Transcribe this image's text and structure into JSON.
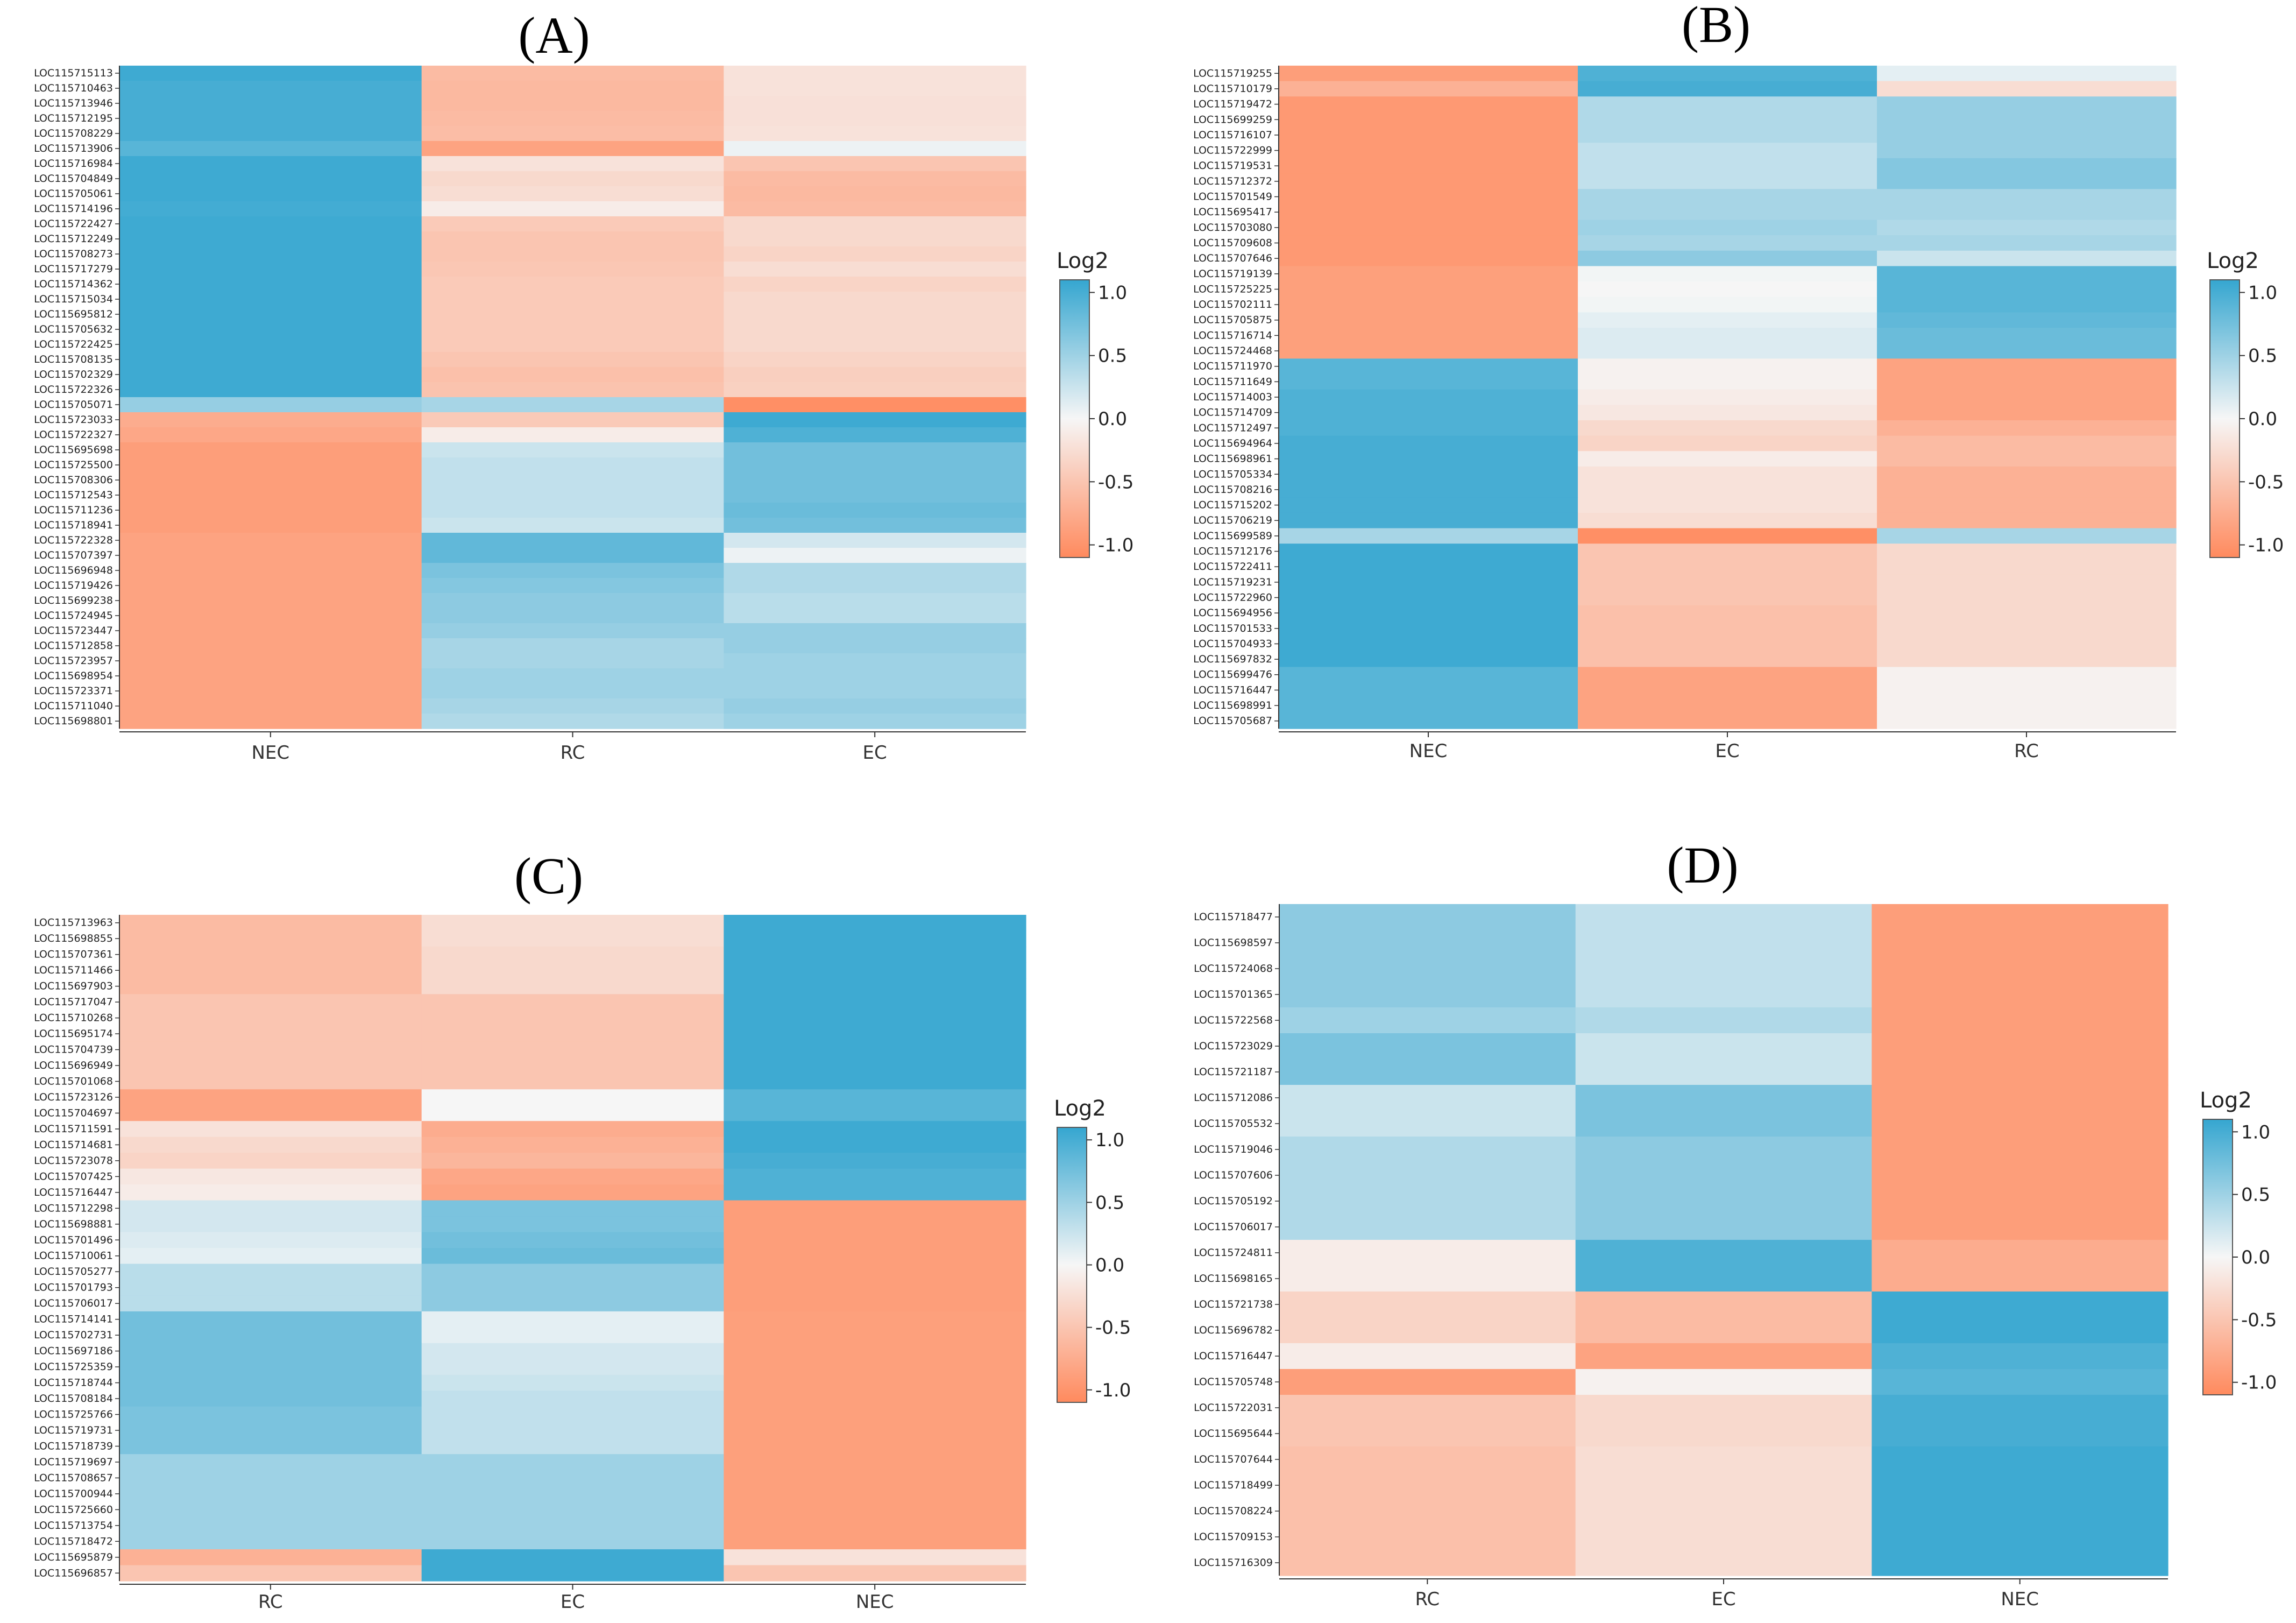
{
  "colors": {
    "low": "#FF8A5E",
    "mid": "#F6F6F6",
    "high": "#35A6D0"
  },
  "chart_data": [
    {
      "type": "heatmap",
      "title": "(A)",
      "x_categories": [
        "NEC",
        "RC",
        "EC"
      ],
      "legend_title": "Log2",
      "legend_ticks": [
        "1.0",
        "0.5",
        "0.0",
        "-0.5",
        "-1.0"
      ],
      "value_range": [
        -1.1,
        1.1
      ],
      "genes": [
        "LOC115715113",
        "LOC115710463",
        "LOC115713946",
        "LOC115712195",
        "LOC115708229",
        "LOC115713906",
        "LOC115716984",
        "LOC115704849",
        "LOC115705061",
        "LOC115714196",
        "LOC115722427",
        "LOC115712249",
        "LOC115708273",
        "LOC115717279",
        "LOC115714362",
        "LOC115715034",
        "LOC115695812",
        "LOC115705632",
        "LOC115722425",
        "LOC115708135",
        "LOC115702329",
        "LOC115722326",
        "LOC115705071",
        "LOC115723033",
        "LOC115722327",
        "LOC115695698",
        "LOC115725500",
        "LOC115708306",
        "LOC115712543",
        "LOC115711236",
        "LOC115718941",
        "LOC115722328",
        "LOC115707397",
        "LOC115696948",
        "LOC115719426",
        "LOC115699238",
        "LOC115724945",
        "LOC115723447",
        "LOC115712858",
        "LOC115723957",
        "LOC115698954",
        "LOC115723371",
        "LOC115711040",
        "LOC115698801"
      ],
      "values": [
        [
          1.05,
          -0.6,
          -0.2
        ],
        [
          1.0,
          -0.62,
          -0.2
        ],
        [
          1.0,
          -0.62,
          -0.22
        ],
        [
          1.0,
          -0.6,
          -0.22
        ],
        [
          1.0,
          -0.58,
          -0.2
        ],
        [
          0.9,
          -0.85,
          0.05
        ],
        [
          1.05,
          -0.2,
          -0.5
        ],
        [
          1.05,
          -0.3,
          -0.6
        ],
        [
          1.05,
          -0.25,
          -0.62
        ],
        [
          1.02,
          -0.1,
          -0.6
        ],
        [
          1.05,
          -0.45,
          -0.3
        ],
        [
          1.05,
          -0.5,
          -0.3
        ],
        [
          1.05,
          -0.5,
          -0.35
        ],
        [
          1.05,
          -0.48,
          -0.25
        ],
        [
          1.05,
          -0.45,
          -0.35
        ],
        [
          1.05,
          -0.45,
          -0.3
        ],
        [
          1.05,
          -0.45,
          -0.3
        ],
        [
          1.05,
          -0.45,
          -0.3
        ],
        [
          1.05,
          -0.45,
          -0.3
        ],
        [
          1.05,
          -0.5,
          -0.35
        ],
        [
          1.05,
          -0.55,
          -0.4
        ],
        [
          1.05,
          -0.52,
          -0.38
        ],
        [
          0.55,
          0.45,
          -1.05
        ],
        [
          -0.75,
          -0.45,
          1.05
        ],
        [
          -0.8,
          -0.1,
          0.95
        ],
        [
          -0.9,
          0.25,
          0.75
        ],
        [
          -0.9,
          0.3,
          0.75
        ],
        [
          -0.9,
          0.3,
          0.75
        ],
        [
          -0.9,
          0.3,
          0.75
        ],
        [
          -0.9,
          0.3,
          0.8
        ],
        [
          -0.9,
          0.25,
          0.75
        ],
        [
          -0.85,
          0.85,
          0.2
        ],
        [
          -0.85,
          0.85,
          0.05
        ],
        [
          -0.85,
          0.7,
          0.4
        ],
        [
          -0.85,
          0.65,
          0.4
        ],
        [
          -0.85,
          0.6,
          0.35
        ],
        [
          -0.85,
          0.6,
          0.35
        ],
        [
          -0.85,
          0.55,
          0.55
        ],
        [
          -0.85,
          0.45,
          0.55
        ],
        [
          -0.85,
          0.45,
          0.5
        ],
        [
          -0.85,
          0.5,
          0.5
        ],
        [
          -0.85,
          0.5,
          0.5
        ],
        [
          -0.85,
          0.45,
          0.55
        ],
        [
          -0.85,
          0.4,
          0.5
        ]
      ]
    },
    {
      "type": "heatmap",
      "title": "(B)",
      "x_categories": [
        "NEC",
        "EC",
        "RC"
      ],
      "legend_title": "Log2",
      "legend_ticks": [
        "1.0",
        "0.5",
        "0.0",
        "-0.5",
        "-1.0"
      ],
      "value_range": [
        -1.1,
        1.1
      ],
      "genes": [
        "LOC115719255",
        "LOC115710179",
        "LOC115719472",
        "LOC115699259",
        "LOC115716107",
        "LOC115722999",
        "LOC115719531",
        "LOC115712372",
        "LOC115701549",
        "LOC115695417",
        "LOC115703080",
        "LOC115709608",
        "LOC115707646",
        "LOC115719139",
        "LOC115725225",
        "LOC115702111",
        "LOC115705875",
        "LOC115716714",
        "LOC115724468",
        "LOC115711970",
        "LOC115711649",
        "LOC115714003",
        "LOC115714709",
        "LOC115712497",
        "LOC115694964",
        "LOC115698961",
        "LOC115705334",
        "LOC115708216",
        "LOC115715202",
        "LOC115706219",
        "LOC115699589",
        "LOC115712176",
        "LOC115722411",
        "LOC115719231",
        "LOC115722960",
        "LOC115694956",
        "LOC115701533",
        "LOC115704933",
        "LOC115697832",
        "LOC115699476",
        "LOC115716447",
        "LOC115698991",
        "LOC115705687"
      ],
      "values": [
        [
          -0.9,
          0.95,
          0.1
        ],
        [
          -0.7,
          1.0,
          -0.25
        ],
        [
          -0.95,
          0.4,
          0.55
        ],
        [
          -0.95,
          0.4,
          0.55
        ],
        [
          -0.95,
          0.4,
          0.55
        ],
        [
          -0.95,
          0.3,
          0.55
        ],
        [
          -0.95,
          0.3,
          0.65
        ],
        [
          -0.95,
          0.3,
          0.65
        ],
        [
          -0.95,
          0.45,
          0.45
        ],
        [
          -0.95,
          0.45,
          0.45
        ],
        [
          -0.95,
          0.5,
          0.4
        ],
        [
          -0.95,
          0.45,
          0.45
        ],
        [
          -0.95,
          0.6,
          0.25
        ],
        [
          -0.88,
          0.02,
          0.9
        ],
        [
          -0.88,
          0.0,
          0.9
        ],
        [
          -0.88,
          0.02,
          0.9
        ],
        [
          -0.88,
          0.1,
          0.85
        ],
        [
          -0.88,
          0.15,
          0.8
        ],
        [
          -0.88,
          0.15,
          0.8
        ],
        [
          0.9,
          -0.05,
          -0.85
        ],
        [
          0.9,
          -0.05,
          -0.85
        ],
        [
          0.95,
          -0.1,
          -0.85
        ],
        [
          0.95,
          -0.15,
          -0.85
        ],
        [
          0.95,
          -0.3,
          -0.7
        ],
        [
          1.0,
          -0.35,
          -0.6
        ],
        [
          1.0,
          -0.1,
          -0.6
        ],
        [
          1.0,
          -0.2,
          -0.7
        ],
        [
          1.0,
          -0.2,
          -0.7
        ],
        [
          1.0,
          -0.2,
          -0.7
        ],
        [
          1.0,
          -0.25,
          -0.7
        ],
        [
          0.45,
          -1.05,
          0.45
        ],
        [
          1.05,
          -0.5,
          -0.3
        ],
        [
          1.05,
          -0.5,
          -0.3
        ],
        [
          1.05,
          -0.5,
          -0.3
        ],
        [
          1.05,
          -0.5,
          -0.3
        ],
        [
          1.05,
          -0.55,
          -0.3
        ],
        [
          1.05,
          -0.55,
          -0.3
        ],
        [
          1.05,
          -0.55,
          -0.3
        ],
        [
          1.05,
          -0.55,
          -0.3
        ],
        [
          0.9,
          -0.85,
          -0.05
        ],
        [
          0.9,
          -0.85,
          -0.05
        ],
        [
          0.9,
          -0.85,
          -0.05
        ],
        [
          0.9,
          -0.85,
          -0.05
        ]
      ]
    },
    {
      "type": "heatmap",
      "title": "(C)",
      "x_categories": [
        "RC",
        "EC",
        "NEC"
      ],
      "legend_title": "Log2",
      "legend_ticks": [
        "1.0",
        "0.5",
        "0.0",
        "-0.5",
        "-1.0"
      ],
      "value_range": [
        -1.1,
        1.1
      ],
      "genes": [
        "LOC115713963",
        "LOC115698855",
        "LOC115707361",
        "LOC115711466",
        "LOC115697903",
        "LOC115717047",
        "LOC115710268",
        "LOC115695174",
        "LOC115704739",
        "LOC115696949",
        "LOC115701068",
        "LOC115723126",
        "LOC115704697",
        "LOC115711591",
        "LOC115714681",
        "LOC115723078",
        "LOC115707425",
        "LOC115716447",
        "LOC115712298",
        "LOC115698881",
        "LOC115701496",
        "LOC115710061",
        "LOC115705277",
        "LOC115701793",
        "LOC115706017",
        "LOC115714141",
        "LOC115702731",
        "LOC115697186",
        "LOC115725359",
        "LOC115718744",
        "LOC115708184",
        "LOC115725766",
        "LOC115719731",
        "LOC115718739",
        "LOC115719697",
        "LOC115708657",
        "LOC115700944",
        "LOC115725660",
        "LOC115713754",
        "LOC115718472",
        "LOC115695879",
        "LOC115696857"
      ],
      "values": [
        [
          -0.6,
          -0.25,
          1.05
        ],
        [
          -0.6,
          -0.25,
          1.05
        ],
        [
          -0.6,
          -0.3,
          1.05
        ],
        [
          -0.6,
          -0.3,
          1.05
        ],
        [
          -0.6,
          -0.3,
          1.05
        ],
        [
          -0.5,
          -0.5,
          1.05
        ],
        [
          -0.5,
          -0.5,
          1.05
        ],
        [
          -0.5,
          -0.5,
          1.05
        ],
        [
          -0.5,
          -0.5,
          1.05
        ],
        [
          -0.5,
          -0.5,
          1.05
        ],
        [
          -0.5,
          -0.5,
          1.05
        ],
        [
          -0.85,
          0.0,
          0.9
        ],
        [
          -0.85,
          0.0,
          0.9
        ],
        [
          -0.2,
          -0.75,
          1.05
        ],
        [
          -0.3,
          -0.7,
          1.05
        ],
        [
          -0.35,
          -0.65,
          1.0
        ],
        [
          -0.15,
          -0.8,
          0.95
        ],
        [
          -0.1,
          -0.85,
          0.95
        ],
        [
          0.2,
          0.7,
          -0.9
        ],
        [
          0.2,
          0.7,
          -0.9
        ],
        [
          0.15,
          0.75,
          -0.9
        ],
        [
          0.1,
          0.8,
          -0.9
        ],
        [
          0.35,
          0.6,
          -0.9
        ],
        [
          0.35,
          0.6,
          -0.9
        ],
        [
          0.35,
          0.6,
          -0.9
        ],
        [
          0.75,
          0.1,
          -0.88
        ],
        [
          0.75,
          0.1,
          -0.88
        ],
        [
          0.75,
          0.2,
          -0.88
        ],
        [
          0.75,
          0.2,
          -0.88
        ],
        [
          0.75,
          0.25,
          -0.88
        ],
        [
          0.75,
          0.3,
          -0.88
        ],
        [
          0.7,
          0.3,
          -0.88
        ],
        [
          0.7,
          0.3,
          -0.88
        ],
        [
          0.7,
          0.3,
          -0.88
        ],
        [
          0.5,
          0.5,
          -0.88
        ],
        [
          0.5,
          0.5,
          -0.88
        ],
        [
          0.5,
          0.5,
          -0.88
        ],
        [
          0.5,
          0.5,
          -0.88
        ],
        [
          0.5,
          0.5,
          -0.88
        ],
        [
          0.5,
          0.5,
          -0.88
        ],
        [
          -0.7,
          1.05,
          -0.2
        ],
        [
          -0.5,
          1.05,
          -0.5
        ]
      ]
    },
    {
      "type": "heatmap",
      "title": "(D)",
      "x_categories": [
        "RC",
        "EC",
        "NEC"
      ],
      "legend_title": "Log2",
      "legend_ticks": [
        "1.0",
        "0.5",
        "0.0",
        "-0.5",
        "-1.0"
      ],
      "value_range": [
        -1.1,
        1.1
      ],
      "genes": [
        "LOC115718477",
        "LOC115698597",
        "LOC115724068",
        "LOC115701365",
        "LOC115722568",
        "LOC115723029",
        "LOC115721187",
        "LOC115712086",
        "LOC115705532",
        "LOC115719046",
        "LOC115707606",
        "LOC115705192",
        "LOC115706017",
        "LOC115724811",
        "LOC115698165",
        "LOC115721738",
        "LOC115696782",
        "LOC115716447",
        "LOC115705748",
        "LOC115722031",
        "LOC115695644",
        "LOC115707644",
        "LOC115718499",
        "LOC115708224",
        "LOC115709153",
        "LOC115716309"
      ],
      "values": [
        [
          0.6,
          0.3,
          -0.9
        ],
        [
          0.6,
          0.3,
          -0.9
        ],
        [
          0.6,
          0.3,
          -0.9
        ],
        [
          0.6,
          0.3,
          -0.9
        ],
        [
          0.5,
          0.4,
          -0.9
        ],
        [
          0.7,
          0.25,
          -0.9
        ],
        [
          0.7,
          0.25,
          -0.9
        ],
        [
          0.25,
          0.7,
          -0.9
        ],
        [
          0.25,
          0.7,
          -0.9
        ],
        [
          0.4,
          0.6,
          -0.9
        ],
        [
          0.4,
          0.6,
          -0.9
        ],
        [
          0.4,
          0.6,
          -0.9
        ],
        [
          0.4,
          0.6,
          -0.9
        ],
        [
          -0.1,
          0.95,
          -0.75
        ],
        [
          -0.1,
          0.95,
          -0.75
        ],
        [
          -0.35,
          -0.6,
          1.05
        ],
        [
          -0.35,
          -0.6,
          1.05
        ],
        [
          -0.1,
          -0.85,
          0.95
        ],
        [
          -0.9,
          -0.05,
          0.9
        ],
        [
          -0.5,
          -0.3,
          1.0
        ],
        [
          -0.5,
          -0.3,
          1.0
        ],
        [
          -0.55,
          -0.25,
          1.05
        ],
        [
          -0.55,
          -0.25,
          1.05
        ],
        [
          -0.55,
          -0.25,
          1.05
        ],
        [
          -0.55,
          -0.25,
          1.05
        ],
        [
          -0.55,
          -0.25,
          1.05
        ]
      ]
    }
  ]
}
